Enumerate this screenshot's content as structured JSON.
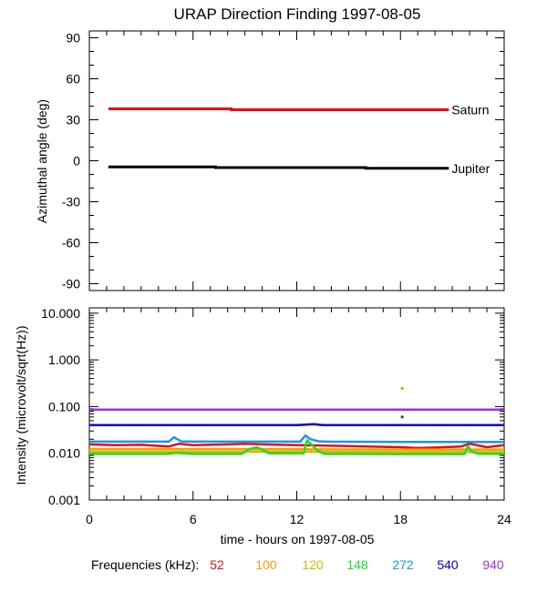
{
  "chart_data": [
    {
      "type": "line",
      "title": "URAP Direction Finding  1997-08-05",
      "xlabel": "",
      "ylabel": "Azimuthal angle (deg)",
      "xlim": [
        0,
        24
      ],
      "ylim": [
        -95,
        95
      ],
      "yticks": [
        90,
        60,
        30,
        0,
        -30,
        -60,
        -90
      ],
      "yticklabels": [
        "90",
        "60",
        "30",
        "0",
        "-30",
        "-60",
        "-90"
      ],
      "series": [
        {
          "name": "Saturn",
          "color": "#ee0000",
          "x": [
            1.1,
            8.2,
            8.2,
            20.8
          ],
          "y": [
            38.0,
            38.0,
            37.3,
            37.3
          ]
        },
        {
          "name": "Jupiter",
          "color": "#000000",
          "x": [
            1.1,
            7.3,
            7.3,
            16.0,
            16.0,
            20.8
          ],
          "y": [
            -4.5,
            -4.5,
            -5.0,
            -5.0,
            -5.5,
            -5.5
          ]
        }
      ]
    },
    {
      "type": "line",
      "yscale": "log",
      "xlabel": "time - hours on 1997-08-05",
      "ylabel": "Intensity (microvolt/sqrt(Hz))",
      "xlim": [
        0,
        24
      ],
      "xticks": [
        0,
        6,
        12,
        18,
        24
      ],
      "xticklabels": [
        "0",
        "6",
        "12",
        "18",
        "24"
      ],
      "ylim": [
        0.001,
        13.0
      ],
      "yticks": [
        10.0,
        1.0,
        0.1,
        0.01,
        0.001
      ],
      "yticklabels": [
        "10.000",
        "1.000",
        "0.100",
        "0.010",
        "0.001"
      ],
      "legend_title": "Frequencies (kHz):",
      "series": [
        {
          "name": "52",
          "color": "#dd1111",
          "x": [
            0,
            1.5,
            3,
            4.6,
            5.2,
            6,
            8,
            9,
            10,
            12,
            13,
            14,
            16,
            18,
            19,
            20,
            21.5,
            22,
            23,
            24
          ],
          "y": [
            0.0155,
            0.015,
            0.0152,
            0.014,
            0.016,
            0.015,
            0.0155,
            0.016,
            0.0155,
            0.015,
            0.0148,
            0.0145,
            0.014,
            0.0135,
            0.013,
            0.0133,
            0.014,
            0.016,
            0.0135,
            0.015
          ]
        },
        {
          "name": "100",
          "color": "#ff9900",
          "x": [
            0,
            6,
            12,
            18,
            24
          ],
          "y": [
            0.0123,
            0.0123,
            0.0122,
            0.012,
            0.012
          ]
        },
        {
          "name": "120",
          "color": "#ccbb00",
          "x": [
            0,
            6,
            12,
            18,
            24
          ],
          "y": [
            0.0108,
            0.0108,
            0.0108,
            0.0106,
            0.0106
          ]
        },
        {
          "name": "148",
          "color": "#22dd22",
          "x": [
            0,
            4.5,
            5.0,
            6,
            8.8,
            9.3,
            9.7,
            10.4,
            12.4,
            12.6,
            12.8,
            13.2,
            13.6,
            14.5,
            18,
            21.7,
            21.9,
            22.1,
            22.5,
            24
          ],
          "y": [
            0.0097,
            0.0097,
            0.0102,
            0.0097,
            0.0097,
            0.0125,
            0.0135,
            0.01,
            0.01,
            0.019,
            0.016,
            0.0115,
            0.0097,
            0.0097,
            0.0096,
            0.0096,
            0.0145,
            0.011,
            0.0097,
            0.0097
          ]
        },
        {
          "name": "272",
          "color": "#1199ee",
          "x": [
            0,
            4.6,
            4.9,
            5.3,
            6,
            12.2,
            12.5,
            12.8,
            13.3,
            14,
            18,
            24
          ],
          "y": [
            0.0178,
            0.0178,
            0.022,
            0.018,
            0.0178,
            0.0178,
            0.024,
            0.02,
            0.018,
            0.0177,
            0.0175,
            0.0175
          ]
        },
        {
          "name": "540",
          "color": "#0000cc",
          "x": [
            0,
            6,
            12,
            13,
            13.5,
            14,
            18,
            24
          ],
          "y": [
            0.04,
            0.04,
            0.04,
            0.042,
            0.04,
            0.04,
            0.04,
            0.04
          ]
        },
        {
          "name": "940",
          "color": "#9933dd",
          "x": [
            0,
            6,
            12,
            18,
            24
          ],
          "y": [
            0.086,
            0.086,
            0.086,
            0.086,
            0.086
          ]
        }
      ],
      "annotations": [
        {
          "x": 18.1,
          "y": 0.245,
          "color": "#88cc00"
        },
        {
          "x": 18.1,
          "y": 0.06,
          "color": "#3333aa"
        }
      ]
    }
  ]
}
